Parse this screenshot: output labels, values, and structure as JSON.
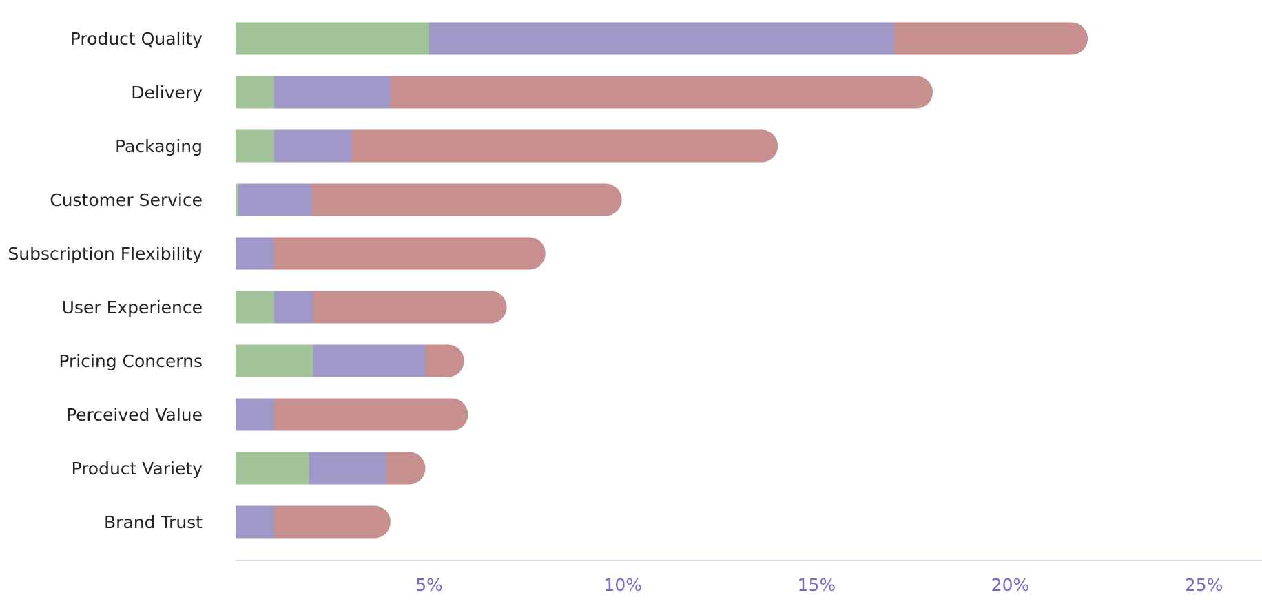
{
  "chart_data": {
    "type": "bar",
    "orientation": "horizontal",
    "stacked": true,
    "categories": [
      "Product Quality",
      "Delivery",
      "Packaging",
      "Customer Service",
      "Subscription Flexibility",
      "User Experience",
      "Pricing Concerns",
      "Perceived Value",
      "Product Variety",
      "Brand Trust"
    ],
    "series": [
      {
        "color": "#a3c49a",
        "values": [
          5.0,
          1.0,
          1.0,
          0.07,
          0.0,
          1.0,
          2.0,
          0.0,
          1.9,
          0.0
        ]
      },
      {
        "color": "#a098c9",
        "values": [
          12.0,
          3.0,
          2.0,
          1.9,
          1.0,
          1.0,
          2.9,
          1.0,
          2.0,
          1.0
        ]
      },
      {
        "color": "#c78f8e",
        "values": [
          5.0,
          14.0,
          11.0,
          8.0,
          7.0,
          5.0,
          1.0,
          5.0,
          1.0,
          3.0
        ]
      }
    ],
    "xlim": [
      0,
      26.5
    ],
    "xticks": [
      5,
      10,
      15,
      20,
      25
    ],
    "xtick_labels": [
      "5%",
      "10%",
      "15%",
      "20%",
      "25%"
    ],
    "title": "",
    "xlabel": "",
    "ylabel": "",
    "grid": false,
    "legend": "none",
    "axis_color": "#d9d6ec",
    "tick_label_color": "#7b68c8",
    "bar_end_style": "rounded"
  }
}
